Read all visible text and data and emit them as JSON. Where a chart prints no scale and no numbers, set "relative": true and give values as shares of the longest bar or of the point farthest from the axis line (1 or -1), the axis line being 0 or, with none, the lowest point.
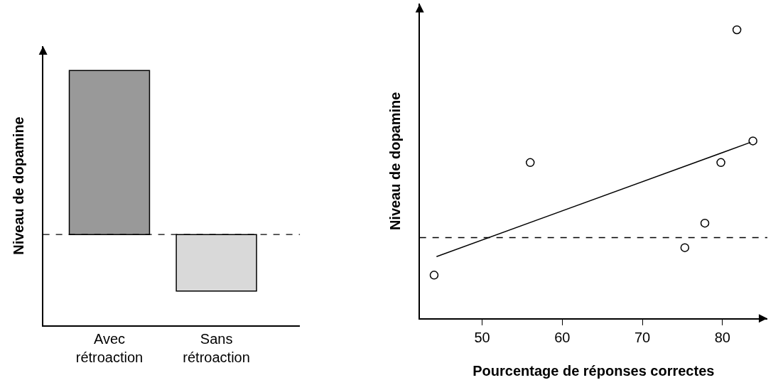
{
  "chart_data": [
    {
      "type": "bar",
      "ylabel": "Niveau de dopamine",
      "categories": [
        "Avec\nrétroaction",
        "Sans\nrétroaction"
      ],
      "values": [
        1,
        -0.345
      ],
      "colors": [
        "#999999",
        "#d9d9d9"
      ],
      "relative": true,
      "ref_lines": [
        {
          "axis": "y",
          "value": 0,
          "line_style": "dashed",
          "color": "#000000"
        }
      ]
    },
    {
      "type": "scatter",
      "xlabel": "Pourcentage de réponses correctes",
      "ylabel": "Niveau de dopamine",
      "relative": true,
      "xlim": [
        42.2,
        85.6
      ],
      "xticks": [
        50,
        60,
        70,
        80
      ],
      "marker": "circle",
      "series": [
        {
          "color": "#000000",
          "x": [
            44.0,
            56.0,
            75.3,
            77.8,
            79.8,
            81.8,
            83.8
          ],
          "values": [
            0.15,
            0.54,
            0.245,
            0.33,
            0.54,
            1.0,
            0.615
          ]
        },
        {
          "type": "line",
          "color": "#000000",
          "x": [
            44.3,
            83.5
          ],
          "values": [
            0.214,
            0.61
          ],
          "marker": "none"
        }
      ],
      "ref_lines": [
        {
          "axis": "y",
          "value": 0.28,
          "line_style": "dashed",
          "color": "#000000"
        }
      ]
    }
  ]
}
